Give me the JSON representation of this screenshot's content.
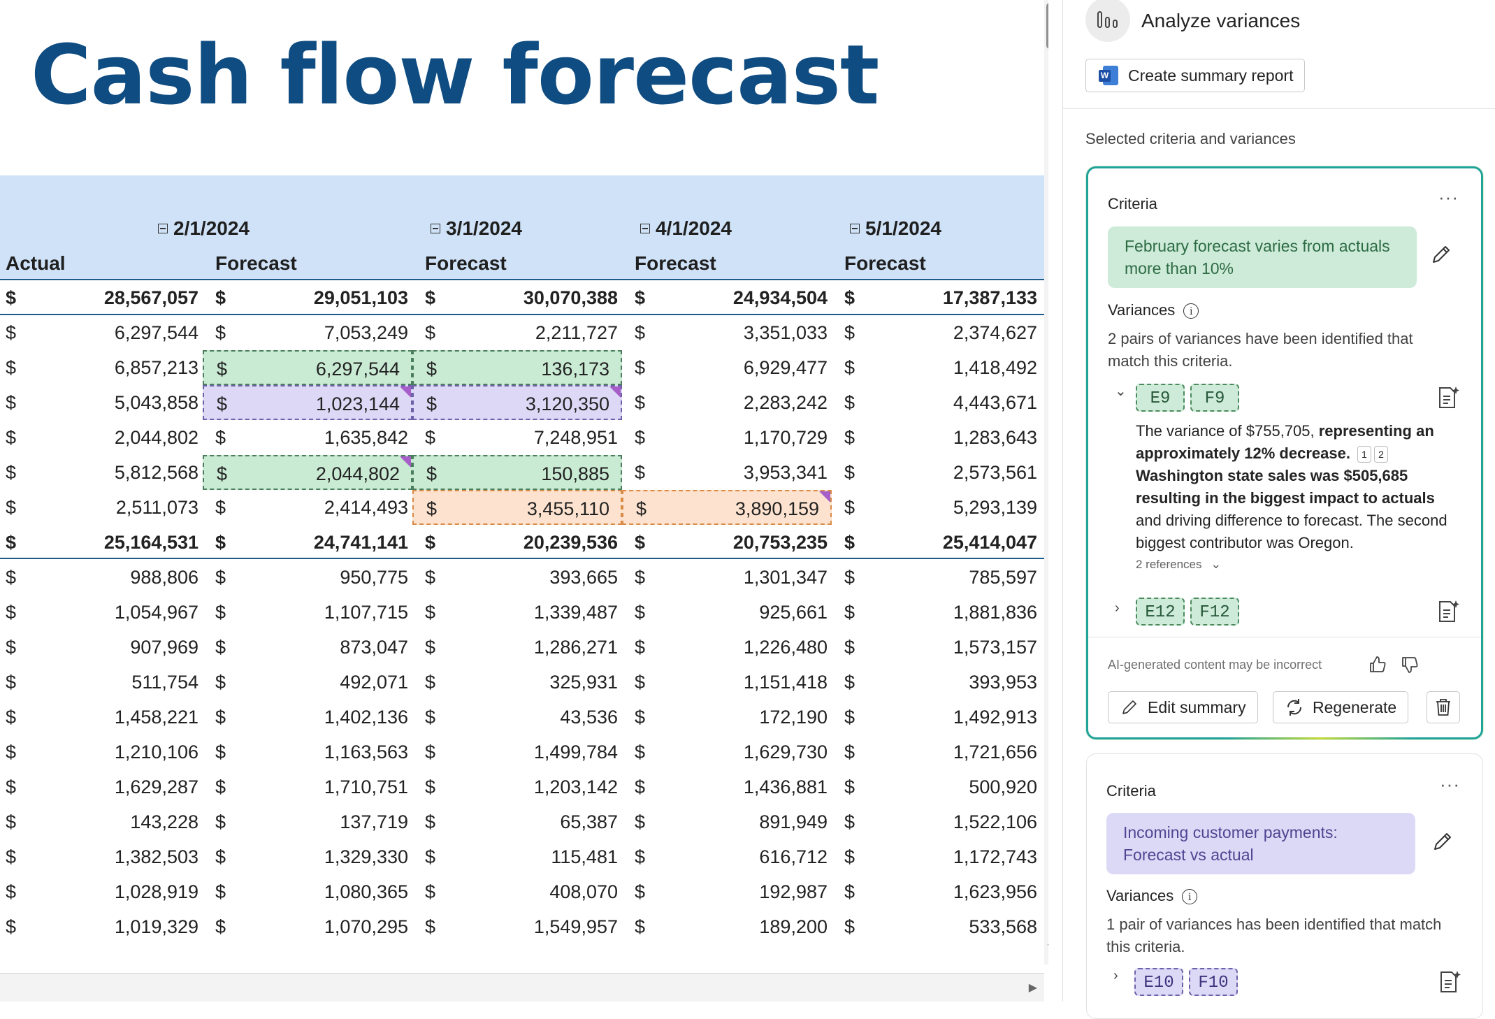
{
  "sheet": {
    "title": "Cash flow forecast",
    "dates": [
      "2/1/2024",
      "3/1/2024",
      "4/1/2024",
      "5/1/2024"
    ],
    "subheaders": [
      "Actual",
      "Forecast",
      "Forecast",
      "Forecast",
      "Forecast"
    ],
    "currency": "$",
    "rows": [
      {
        "bold": true,
        "v": [
          "28,567,057",
          "29,051,103",
          "30,070,388",
          "24,934,504",
          "17,387,133"
        ]
      },
      {
        "bold": false,
        "v": [
          "6,297,544",
          "7,053,249",
          "2,211,727",
          "3,351,033",
          "2,374,627"
        ]
      },
      {
        "bold": false,
        "v": [
          "6,857,213",
          "6,297,544",
          "136,173",
          "6,929,477",
          "1,418,492"
        ]
      },
      {
        "bold": false,
        "v": [
          "5,043,858",
          "1,023,144",
          "3,120,350",
          "2,283,242",
          "4,443,671"
        ]
      },
      {
        "bold": false,
        "v": [
          "2,044,802",
          "1,635,842",
          "7,248,951",
          "1,170,729",
          "1,283,643"
        ]
      },
      {
        "bold": false,
        "v": [
          "5,812,568",
          "2,044,802",
          "150,885",
          "3,953,341",
          "2,573,561"
        ]
      },
      {
        "bold": false,
        "v": [
          "2,511,073",
          "2,414,493",
          "3,455,110",
          "3,890,159",
          "5,293,139"
        ]
      },
      {
        "bold": true,
        "v": [
          "25,164,531",
          "24,741,141",
          "20,239,536",
          "20,753,235",
          "25,414,047"
        ]
      },
      {
        "bold": false,
        "v": [
          "988,806",
          "950,775",
          "393,665",
          "1,301,347",
          "785,597"
        ]
      },
      {
        "bold": false,
        "v": [
          "1,054,967",
          "1,107,715",
          "1,339,487",
          "925,661",
          "1,881,836"
        ]
      },
      {
        "bold": false,
        "v": [
          "907,969",
          "873,047",
          "1,286,271",
          "1,226,480",
          "1,573,157"
        ]
      },
      {
        "bold": false,
        "v": [
          "511,754",
          "492,071",
          "325,931",
          "1,151,418",
          "393,953"
        ]
      },
      {
        "bold": false,
        "v": [
          "1,458,221",
          "1,402,136",
          "43,536",
          "172,190",
          "1,492,913"
        ]
      },
      {
        "bold": false,
        "v": [
          "1,210,106",
          "1,163,563",
          "1,499,784",
          "1,629,730",
          "1,721,656"
        ]
      },
      {
        "bold": false,
        "v": [
          "1,629,287",
          "1,710,751",
          "1,203,142",
          "1,436,881",
          "500,920"
        ]
      },
      {
        "bold": false,
        "v": [
          "143,228",
          "137,719",
          "65,387",
          "891,949",
          "1,522,106"
        ]
      },
      {
        "bold": false,
        "v": [
          "1,382,503",
          "1,329,330",
          "115,481",
          "616,712",
          "1,172,743"
        ]
      },
      {
        "bold": false,
        "v": [
          "1,028,919",
          "1,080,365",
          "408,070",
          "192,987",
          "1,623,956"
        ]
      },
      {
        "bold": false,
        "v": [
          "1,019,329",
          "1,070,295",
          "1,549,957",
          "189,200",
          "533,568"
        ]
      }
    ],
    "highlights": [
      {
        "row": 2,
        "col": 1,
        "color": "green"
      },
      {
        "row": 2,
        "col": 2,
        "color": "green"
      },
      {
        "row": 3,
        "col": 1,
        "color": "purple",
        "corner": true
      },
      {
        "row": 3,
        "col": 2,
        "color": "purple",
        "corner": true
      },
      {
        "row": 5,
        "col": 1,
        "color": "green",
        "corner": true
      },
      {
        "row": 5,
        "col": 2,
        "color": "green"
      },
      {
        "row": 6,
        "col": 2,
        "color": "orange"
      },
      {
        "row": 6,
        "col": 3,
        "color": "orange",
        "corner": true
      }
    ]
  },
  "pane": {
    "title": "Analyze variances",
    "summary_button": "Create summary report",
    "selected_label": "Selected criteria and variances",
    "card1": {
      "criteria_label": "Criteria",
      "criteria_text": "February forecast varies from actuals more than 10%",
      "variances_label": "Variances",
      "variances_desc": "2 pairs of variances have been identified that match this criteria.",
      "pair1": [
        "E9",
        "F9"
      ],
      "pair2": [
        "E12",
        "F12"
      ],
      "text_1": "The variance of $755,705, ",
      "text_2": "representing an approximately 12% decrease.",
      "ref_1": "1",
      "ref_2": "2",
      "text_3": "Washington state sales was $505,685 resulting in the biggest impact to actuals",
      "text_4": " and driving difference to forecast. The second biggest contributor was Oregon.",
      "references": "2 references",
      "ai_note": "AI-generated content may be incorrect",
      "edit_button": "Edit summary",
      "regenerate_button": "Regenerate"
    },
    "card2": {
      "criteria_label": "Criteria",
      "criteria_text": "Incoming customer payments: Forecast vs actual",
      "variances_label": "Variances",
      "variances_desc": "1 pair of variances has been identified that match this criteria.",
      "pair1": [
        "E10",
        "F10"
      ]
    }
  }
}
